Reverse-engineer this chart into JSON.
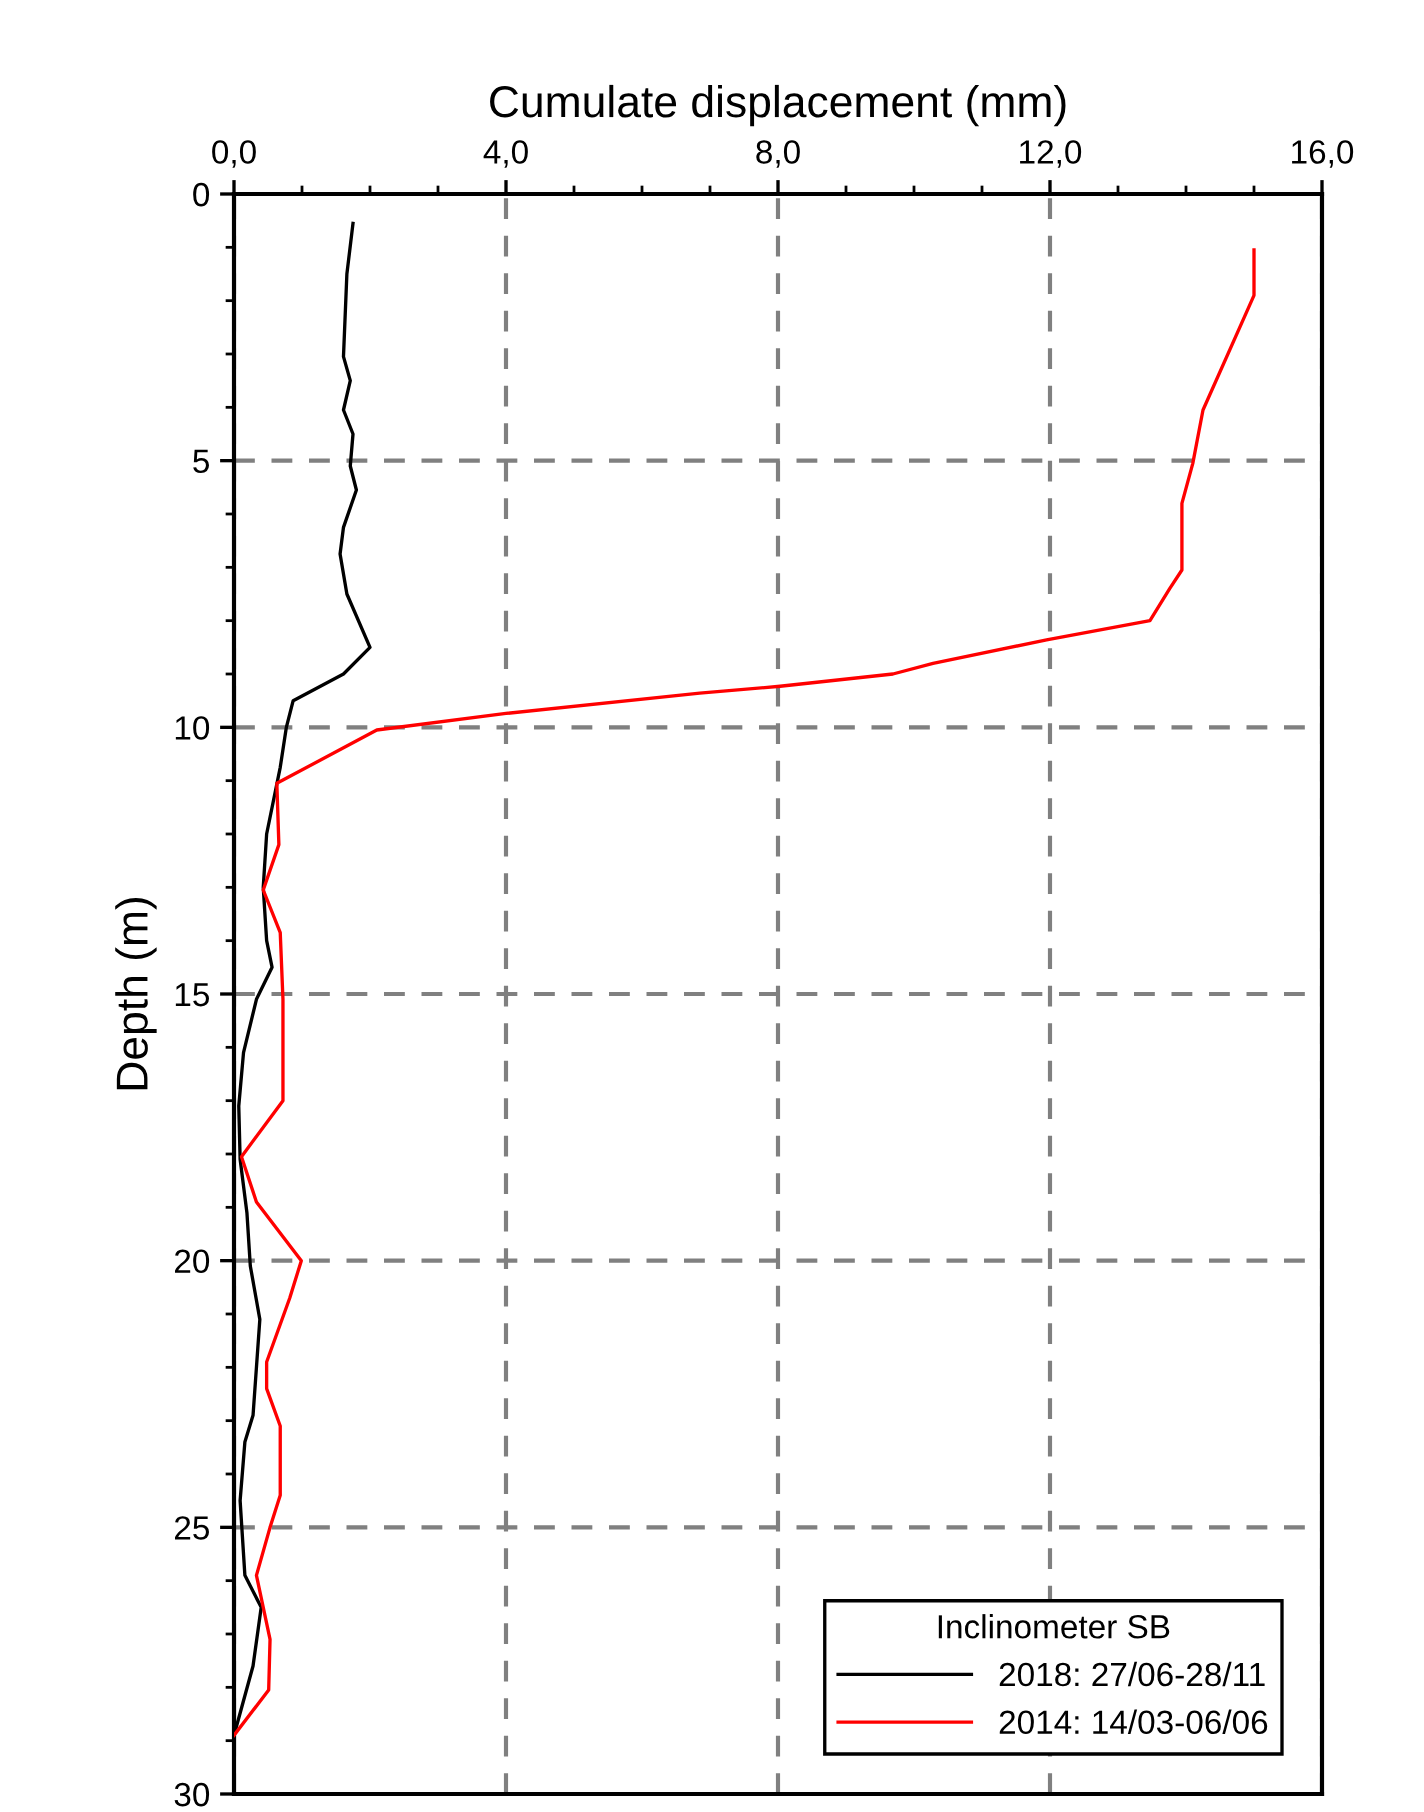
{
  "chart_data": {
    "type": "line",
    "xlabel": "Cumulate displacement (mm)",
    "ylabel": "Depth (m)",
    "legend_title": "Inclinometer SB",
    "legend": "bottom right",
    "grid": true,
    "line_style": "solid",
    "marker": "none",
    "xlim": [
      0,
      16
    ],
    "ylim": [
      30,
      0
    ],
    "xticks": [
      {
        "value": 0,
        "label": "0,0"
      },
      {
        "value": 1,
        "label": null
      },
      {
        "value": 2,
        "label": null
      },
      {
        "value": 3,
        "label": null
      },
      {
        "value": 4,
        "label": "4,0"
      },
      {
        "value": 5,
        "label": null
      },
      {
        "value": 6,
        "label": null
      },
      {
        "value": 7,
        "label": null
      },
      {
        "value": 8,
        "label": "8,0"
      },
      {
        "value": 9,
        "label": null
      },
      {
        "value": 10,
        "label": null
      },
      {
        "value": 11,
        "label": null
      },
      {
        "value": 12,
        "label": "12,0"
      },
      {
        "value": 13,
        "label": null
      },
      {
        "value": 14,
        "label": null
      },
      {
        "value": 15,
        "label": null
      },
      {
        "value": 16,
        "label": "16,0"
      }
    ],
    "yticks": [
      0,
      {
        "value": 1,
        "label": null
      },
      {
        "value": 2,
        "label": null
      },
      {
        "value": 3,
        "label": null
      },
      {
        "value": 4,
        "label": null
      },
      5,
      {
        "value": 6,
        "label": null
      },
      {
        "value": 7,
        "label": null
      },
      {
        "value": 8,
        "label": null
      },
      {
        "value": 9,
        "label": null
      },
      10,
      {
        "value": 11,
        "label": null
      },
      {
        "value": 12,
        "label": null
      },
      {
        "value": 13,
        "label": null
      },
      {
        "value": 14,
        "label": null
      },
      15,
      {
        "value": 16,
        "label": null
      },
      {
        "value": 17,
        "label": null
      },
      {
        "value": 18,
        "label": null
      },
      {
        "value": 19,
        "label": null
      },
      20,
      {
        "value": 21,
        "label": null
      },
      {
        "value": 22,
        "label": null
      },
      {
        "value": 23,
        "label": null
      },
      {
        "value": 24,
        "label": null
      },
      25,
      {
        "value": 26,
        "label": null
      },
      {
        "value": 27,
        "label": null
      },
      {
        "value": 28,
        "label": null
      },
      {
        "value": 29,
        "label": null
      },
      30
    ],
    "series": [
      {
        "name": "2018: 27/06-28/11",
        "color": "#000000",
        "x": [
          1.75,
          1.66,
          1.61,
          1.71,
          1.61,
          1.75,
          1.71,
          1.8,
          1.61,
          1.56,
          1.66,
          2.0,
          1.61,
          0.87,
          0.77,
          0.68,
          0.48,
          0.43,
          0.48,
          0.56,
          0.33,
          0.14,
          0.07,
          0.09,
          0.19,
          0.24,
          0.38,
          0.28,
          0.16,
          0.09,
          0.16,
          0.4,
          0.28,
          0.0
        ],
        "values": [
          0.55,
          1.5,
          3.05,
          3.5,
          4.05,
          4.5,
          5.1,
          5.55,
          6.25,
          6.75,
          7.5,
          8.5,
          9.0,
          9.5,
          10.0,
          10.75,
          12.0,
          13.0,
          14.0,
          14.5,
          15.1,
          16.1,
          17.1,
          18.1,
          19.1,
          20.1,
          21.1,
          22.9,
          23.4,
          24.5,
          25.9,
          26.5,
          27.6,
          28.9
        ]
      },
      {
        "name": "2014: 14/03-06/06",
        "color": "#ff0000",
        "x": [
          15.0,
          15.0,
          14.25,
          14.1,
          13.94,
          13.94,
          13.76,
          13.47,
          11.95,
          10.28,
          9.69,
          8.03,
          6.85,
          4.0,
          2.1,
          0.63,
          0.66,
          0.43,
          0.68,
          0.72,
          0.72,
          0.11,
          0.33,
          0.99,
          0.82,
          0.48,
          0.48,
          0.68,
          0.68,
          0.53,
          0.33,
          0.43,
          0.53,
          0.51,
          0.0
        ],
        "values": [
          1.05,
          1.9,
          4.05,
          5.05,
          5.8,
          7.05,
          7.4,
          8.0,
          8.36,
          8.8,
          9.0,
          9.23,
          9.36,
          9.74,
          10.05,
          11.05,
          12.2,
          13.05,
          13.85,
          15.1,
          17.0,
          18.05,
          18.9,
          20.0,
          20.7,
          21.9,
          22.4,
          23.1,
          24.4,
          25.0,
          25.9,
          26.5,
          27.1,
          28.05,
          28.9
        ]
      }
    ]
  }
}
